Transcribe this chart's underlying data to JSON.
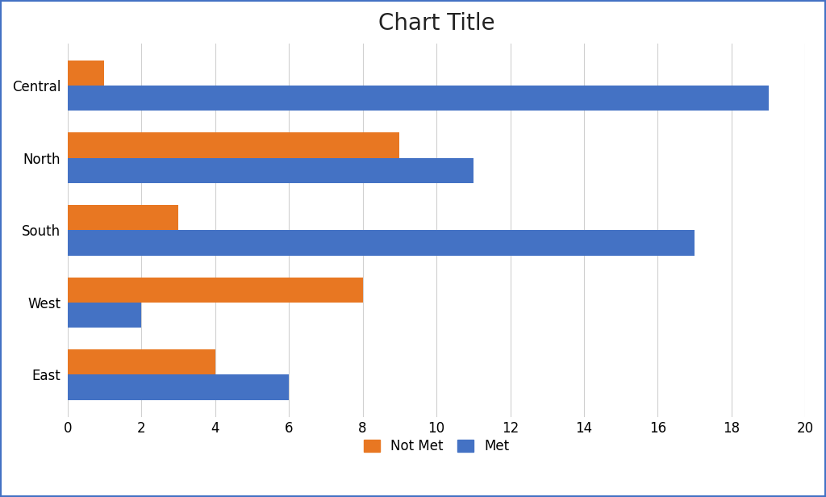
{
  "title": "Chart Title",
  "categories": [
    "Central",
    "North",
    "South",
    "West",
    "East"
  ],
  "not_met": [
    1,
    9,
    3,
    8,
    4
  ],
  "met": [
    19,
    11,
    17,
    2,
    6
  ],
  "not_met_color": "#E87722",
  "met_color": "#4472C4",
  "background_color": "#FFFFFF",
  "xlim": [
    0,
    20
  ],
  "xticks": [
    0,
    2,
    4,
    6,
    8,
    10,
    12,
    14,
    16,
    18,
    20
  ],
  "bar_width": 0.35,
  "title_fontsize": 20,
  "tick_fontsize": 12,
  "legend_fontsize": 12,
  "grid_color": "#D0D0D0",
  "border_color": "#4472C4"
}
